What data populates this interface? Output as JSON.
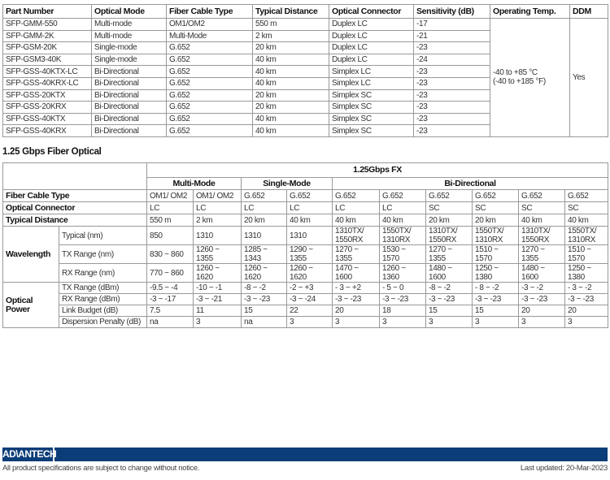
{
  "table1": {
    "headers": [
      "Part Number",
      "Optical Mode",
      "Fiber Cable Type",
      "Typical Distance",
      "Optical Connector",
      "Sensitivity (dB)",
      "Operating Temp.",
      "DDM"
    ],
    "rows": [
      [
        "SFP-GMM-550",
        "Multi-mode",
        "OM1/OM2",
        "550 m",
        "Duplex LC",
        "-17"
      ],
      [
        "SFP-GMM-2K",
        "Multi-mode",
        "Multi-Mode",
        "2 km",
        "Duplex LC",
        "-21"
      ],
      [
        "SFP-GSM-20K",
        "Single-mode",
        "G.652",
        "20 km",
        "Duplex LC",
        "-23"
      ],
      [
        "SFP-GSM3-40K",
        "Single-mode",
        "G.652",
        "40 km",
        "Duplex LC",
        "-24"
      ],
      [
        "SFP-GSS-40KTX-LC",
        "Bi-Directional",
        "G.652",
        "40 km",
        "Simplex LC",
        "-23"
      ],
      [
        "SFP-GSS-40KRX-LC",
        "Bi-Directional",
        "G.652",
        "40 km",
        "Simplex LC",
        "-23"
      ],
      [
        "SFP-GSS-20KTX",
        "Bi-Directional",
        "G.652",
        "20 km",
        "Simplex SC",
        "-23"
      ],
      [
        "SFP-GSS-20KRX",
        "Bi-Directional",
        "G.652",
        "20 km",
        "Simplex SC",
        "-23"
      ],
      [
        "SFP-GSS-40KTX",
        "Bi-Directional",
        "G.652",
        "40 km",
        "Simplex SC",
        "-23"
      ],
      [
        "SFP-GSS-40KRX",
        "Bi-Directional",
        "G.652",
        "40 km",
        "Simplex SC",
        "-23"
      ]
    ],
    "operating_temp_c": "-40 to +85 °C",
    "operating_temp_f": "(-40 to +185 °F)",
    "ddm": "Yes"
  },
  "section_title": "1.25 Gbps Fiber Optical",
  "table2": {
    "group": "1.25Gbps FX",
    "modes": [
      {
        "label": "Multi-Mode",
        "span": 2
      },
      {
        "label": "Single-Mode",
        "span": 2
      },
      {
        "label": "Bi-Directional",
        "span": 6
      }
    ],
    "simple_rows": [
      {
        "label": "Fiber Cable Type",
        "values": [
          "OM1/ OM2",
          "OM1/ OM2",
          "G.652",
          "G.652",
          "G.652",
          "G.652",
          "G.652",
          "G.652",
          "G.652",
          "G.652"
        ]
      },
      {
        "label": "Optical Connector",
        "values": [
          "LC",
          "LC",
          "LC",
          "LC",
          "LC",
          "LC",
          "SC",
          "SC",
          "SC",
          "SC"
        ]
      },
      {
        "label": "Typical Distance",
        "values": [
          "550 m",
          "2 km",
          "20 km",
          "40 km",
          "40 km",
          "40 km",
          "20 km",
          "20 km",
          "40 km",
          "40 km"
        ]
      }
    ],
    "groups": [
      {
        "label": "Wavelength",
        "rows": [
          {
            "label": "Typical (nm)",
            "values": [
              "850",
              "1310",
              "1310",
              "1310",
              "1310TX/\n1550RX",
              "1550TX/\n1310RX",
              "1310TX/\n1550RX",
              "1550TX/\n1310RX",
              "1310TX/\n1550RX",
              "1550TX/\n1310RX"
            ]
          },
          {
            "label": "TX Range (nm)",
            "values": [
              "830 ~ 860",
              "1260 ~\n1355",
              "1285 ~\n1343",
              "1290 ~\n1355",
              "1270 ~\n1355",
              "1530 ~\n1570",
              "1270 ~\n1355",
              "1510 ~\n1570",
              "1270 ~\n1355",
              "1510 ~\n1570"
            ]
          },
          {
            "label": "RX Range (nm)",
            "values": [
              "770 ~ 860",
              "1260 ~\n1620",
              "1260 ~\n1620",
              "1260 ~\n1620",
              "1470 ~\n1600",
              "1260 ~\n1360",
              "1480 ~\n1600",
              "1250 ~\n1380",
              "1480 ~\n1600",
              "1250 ~\n1380"
            ]
          }
        ]
      },
      {
        "label": "Optical\nPower",
        "rows": [
          {
            "label": "TX Range (dBm)",
            "values": [
              "-9.5 ~ -4",
              "-10 ~ -1",
              "-8 ~ -2",
              "-2 ~ +3",
              "- 3 ~ +2",
              "- 5 ~ 0",
              "-8 ~ -2",
              "- 8 ~ -2",
              "-3 ~ -2",
              "- 3 ~ -2"
            ]
          },
          {
            "label": "RX Range (dBm)",
            "values": [
              "-3 ~ -17",
              "-3 ~ -21",
              "-3 ~ -23",
              "-3 ~ -24",
              "-3 ~ -23",
              "-3 ~ -23",
              "-3 ~ -23",
              "-3 ~ -23",
              "-3 ~ -23",
              "-3 ~ -23"
            ]
          },
          {
            "label": "Link Budget (dB)",
            "values": [
              "7.5",
              "11",
              "15",
              "22",
              "20",
              "18",
              "15",
              "15",
              "20",
              "20"
            ]
          },
          {
            "label": "Dispersion Penalty (dB)",
            "values": [
              "na",
              "3",
              "na",
              "3",
              "3",
              "3",
              "3",
              "3",
              "3",
              "3"
            ]
          }
        ]
      }
    ]
  },
  "footer": {
    "logo": "ADVANTECH",
    "notice": "All product specifications are subject to change without notice.",
    "updated": "Last updated: 20-Mar-2023"
  },
  "colors": {
    "brand": "#0b3d78"
  }
}
